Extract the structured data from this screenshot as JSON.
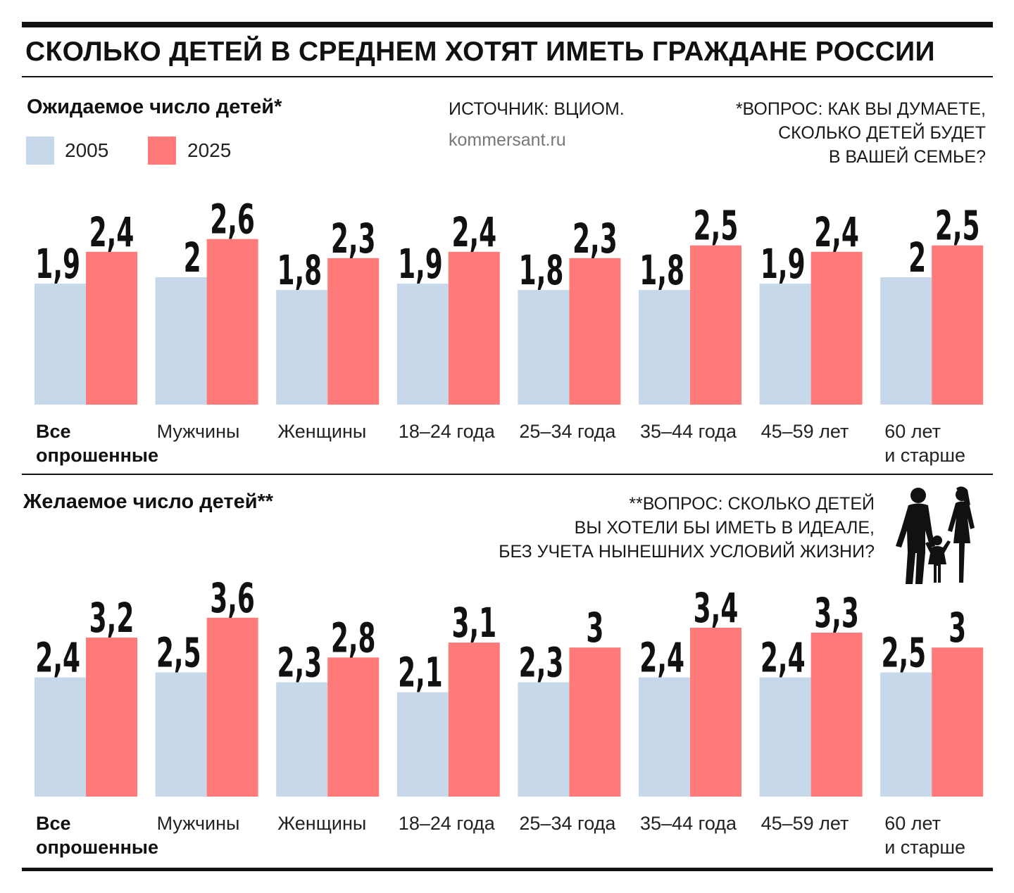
{
  "title": "СКОЛЬКО ДЕТЕЙ В СРЕДНЕМ ХОТЯТ ИМЕТЬ ГРАЖДАНЕ РОССИИ",
  "source": "ИСТОЧНИК: ВЦИОМ.",
  "site": "kommersant.ru",
  "legend": [
    {
      "label": "2005",
      "color": "#c6d8ea"
    },
    {
      "label": "2025",
      "color": "#ff7a78"
    }
  ],
  "icon": "family-silhouette-icon",
  "chart_data": [
    {
      "type": "bar",
      "title": "Ожидаемое число детей*",
      "note": [
        "*ВОПРОС: КАК ВЫ ДУМАЕТЕ,",
        "СКОЛЬКО ДЕТЕЙ БУДЕТ",
        "В ВАШЕЙ СЕМЬЕ?"
      ],
      "categories": [
        [
          "Все",
          "опрошенные"
        ],
        [
          "Мужчины"
        ],
        [
          "Женщины"
        ],
        [
          "18–24 года"
        ],
        [
          "25–34 года"
        ],
        [
          "35–44 года"
        ],
        [
          "45–59 лет"
        ],
        [
          "60 лет",
          "и старше"
        ]
      ],
      "series": [
        {
          "name": "2005",
          "values": [
            1.9,
            2,
            1.8,
            1.9,
            1.8,
            1.8,
            1.9,
            2
          ],
          "labels": [
            "1,9",
            "2",
            "1,8",
            "1,9",
            "1,8",
            "1,8",
            "1,9",
            "2"
          ]
        },
        {
          "name": "2025",
          "values": [
            2.4,
            2.6,
            2.3,
            2.4,
            2.3,
            2.5,
            2.4,
            2.5
          ],
          "labels": [
            "2,4",
            "2,6",
            "2,3",
            "2,4",
            "2,3",
            "2,5",
            "2,4",
            "2,5"
          ]
        }
      ]
    },
    {
      "type": "bar",
      "title": "Желаемое число детей**",
      "note": [
        "**ВОПРОС: СКОЛЬКО ДЕТЕЙ",
        "ВЫ ХОТЕЛИ БЫ ИМЕТЬ В ИДЕАЛЕ,",
        "БЕЗ УЧЕТА НЫНЕШНИХ УСЛОВИЙ ЖИЗНИ?"
      ],
      "categories": [
        [
          "Все",
          "опрошенные"
        ],
        [
          "Мужчины"
        ],
        [
          "Женщины"
        ],
        [
          "18–24 года"
        ],
        [
          "25–34 года"
        ],
        [
          "35–44 года"
        ],
        [
          "45–59 лет"
        ],
        [
          "60 лет",
          "и старше"
        ]
      ],
      "series": [
        {
          "name": "2005",
          "values": [
            2.4,
            2.5,
            2.3,
            2.1,
            2.3,
            2.4,
            2.4,
            2.5
          ],
          "labels": [
            "2,4",
            "2,5",
            "2,3",
            "2,1",
            "2,3",
            "2,4",
            "2,4",
            "2,5"
          ]
        },
        {
          "name": "2025",
          "values": [
            3.2,
            3.6,
            2.8,
            3.1,
            3,
            3.4,
            3.3,
            3
          ],
          "labels": [
            "3,2",
            "3,6",
            "2,8",
            "3,1",
            "3",
            "3,4",
            "3,3",
            "3"
          ]
        }
      ]
    }
  ]
}
